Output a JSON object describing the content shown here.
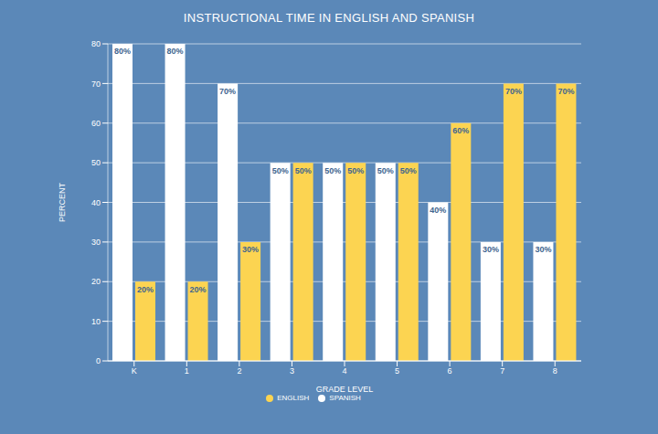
{
  "chart_data": {
    "type": "bar",
    "title": "INSTRUCTIONAL TIME IN ENGLISH AND SPANISH",
    "x_label": "GRADE LEVEL",
    "y_label": "PERCENT",
    "categories": [
      "K",
      "1",
      "2",
      "3",
      "4",
      "5",
      "6",
      "7",
      "8"
    ],
    "series": [
      {
        "name": "SPANISH",
        "color": "#ffffff",
        "values": [
          80,
          80,
          70,
          50,
          50,
          50,
          40,
          30,
          30
        ],
        "value_labels": [
          "80%",
          "80%",
          "70%",
          "50%",
          "50%",
          "50%",
          "40%",
          "30%",
          "30%"
        ]
      },
      {
        "name": "ENGLISH",
        "color": "#fcd451",
        "values": [
          20,
          20,
          30,
          50,
          50,
          50,
          60,
          70,
          70
        ],
        "value_labels": [
          "20%",
          "20%",
          "30%",
          "50%",
          "50%",
          "50%",
          "60%",
          "70%",
          "70%"
        ]
      }
    ],
    "ylim": [
      0,
      80
    ],
    "yticks": [
      0,
      10,
      20,
      30,
      40,
      50,
      60,
      70,
      80
    ],
    "grid": true,
    "data_labels": true,
    "legend": "bottom"
  }
}
